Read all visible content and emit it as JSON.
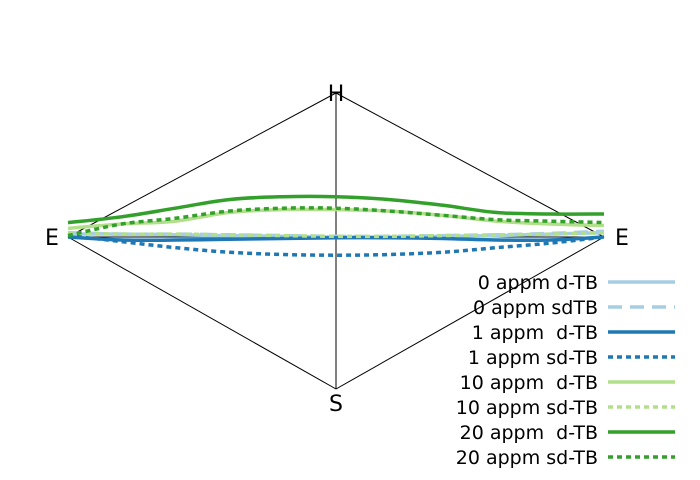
{
  "chart_data": {
    "type": "line",
    "vertex_labels": {
      "top": "H",
      "left": "E",
      "right": "E",
      "bottom": "S"
    },
    "legend_position": "bottom-right",
    "series": [
      {
        "name": "0 appm d-TB",
        "color": "#a6cee3",
        "dash": "solid",
        "points": [
          [
            0.0,
            0.02
          ],
          [
            0.1,
            0.02
          ],
          [
            0.2,
            0.015
          ],
          [
            0.3,
            0.01
          ],
          [
            0.4,
            0.005
          ],
          [
            0.5,
            0.0
          ],
          [
            0.6,
            0.0
          ],
          [
            0.7,
            0.005
          ],
          [
            0.8,
            0.01
          ],
          [
            0.9,
            0.02
          ],
          [
            1.0,
            0.03
          ]
        ]
      },
      {
        "name": "0 appm sdTB",
        "color": "#a6cee3",
        "dash": "dashed",
        "points": [
          [
            0.0,
            0.03
          ],
          [
            0.1,
            0.02
          ],
          [
            0.2,
            0.02
          ],
          [
            0.3,
            0.015
          ],
          [
            0.4,
            0.01
          ],
          [
            0.5,
            0.005
          ],
          [
            0.6,
            0.005
          ],
          [
            0.7,
            0.01
          ],
          [
            0.8,
            0.015
          ],
          [
            0.9,
            0.025
          ],
          [
            1.0,
            0.04
          ]
        ]
      },
      {
        "name": "1 appm  d-TB",
        "color": "#1f78b4",
        "dash": "solid",
        "points": [
          [
            0.0,
            0.0
          ],
          [
            0.1,
            -0.02
          ],
          [
            0.2,
            -0.02
          ],
          [
            0.3,
            -0.015
          ],
          [
            0.4,
            -0.01
          ],
          [
            0.5,
            -0.005
          ],
          [
            0.6,
            -0.005
          ],
          [
            0.7,
            -0.01
          ],
          [
            0.8,
            -0.02
          ],
          [
            0.9,
            -0.02
          ],
          [
            1.0,
            0.0
          ]
        ]
      },
      {
        "name": "1 appm sd-TB",
        "color": "#1f78b4",
        "dash": "dotted",
        "points": [
          [
            0.0,
            0.01
          ],
          [
            0.1,
            -0.03
          ],
          [
            0.2,
            -0.07
          ],
          [
            0.3,
            -0.1
          ],
          [
            0.4,
            -0.115
          ],
          [
            0.5,
            -0.12
          ],
          [
            0.6,
            -0.115
          ],
          [
            0.7,
            -0.1
          ],
          [
            0.8,
            -0.07
          ],
          [
            0.9,
            -0.04
          ],
          [
            1.0,
            0.0
          ]
        ]
      },
      {
        "name": "10 appm  d-TB",
        "color": "#b2df8a",
        "dash": "solid",
        "points": [
          [
            0.0,
            0.06
          ],
          [
            0.1,
            0.09
          ],
          [
            0.2,
            0.11
          ],
          [
            0.3,
            0.17
          ],
          [
            0.4,
            0.19
          ],
          [
            0.5,
            0.19
          ],
          [
            0.6,
            0.18
          ],
          [
            0.7,
            0.15
          ],
          [
            0.8,
            0.11
          ],
          [
            0.9,
            0.09
          ],
          [
            1.0,
            0.08
          ]
        ]
      },
      {
        "name": "10 appm sd-TB",
        "color": "#b2df8a",
        "dash": "dotted",
        "points": [
          [
            0.0,
            0.03
          ],
          [
            0.1,
            0.02
          ],
          [
            0.2,
            0.02
          ],
          [
            0.3,
            0.015
          ],
          [
            0.4,
            0.01
          ],
          [
            0.5,
            0.005
          ],
          [
            0.6,
            0.005
          ],
          [
            0.7,
            0.01
          ],
          [
            0.8,
            0.015
          ],
          [
            0.9,
            0.02
          ],
          [
            1.0,
            0.03
          ]
        ]
      },
      {
        "name": "20 appm  d-TB",
        "color": "#33a02c",
        "dash": "solid",
        "points": [
          [
            0.0,
            0.1
          ],
          [
            0.1,
            0.14
          ],
          [
            0.2,
            0.2
          ],
          [
            0.3,
            0.26
          ],
          [
            0.4,
            0.28
          ],
          [
            0.5,
            0.28
          ],
          [
            0.6,
            0.26
          ],
          [
            0.7,
            0.22
          ],
          [
            0.8,
            0.17
          ],
          [
            0.9,
            0.16
          ],
          [
            1.0,
            0.16
          ]
        ]
      },
      {
        "name": "20 appm sd-TB",
        "color": "#33a02c",
        "dash": "dotted",
        "points": [
          [
            0.0,
            0.01
          ],
          [
            0.1,
            0.09
          ],
          [
            0.2,
            0.13
          ],
          [
            0.3,
            0.18
          ],
          [
            0.4,
            0.2
          ],
          [
            0.5,
            0.2
          ],
          [
            0.6,
            0.18
          ],
          [
            0.7,
            0.15
          ],
          [
            0.8,
            0.12
          ],
          [
            0.9,
            0.11
          ],
          [
            1.0,
            0.1
          ]
        ]
      }
    ]
  }
}
